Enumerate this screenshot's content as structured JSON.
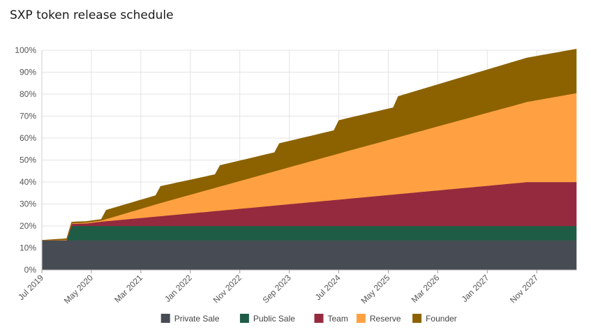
{
  "title": "SXP token release schedule",
  "colors": {
    "Private Sale": "#474c54",
    "Public Sale": "#1f5c45",
    "Team": "#952a3e",
    "Reserve": "#ffa142",
    "Founder": "#8c6200"
  },
  "chart_data": {
    "type": "area",
    "stacked": true,
    "title": "SXP token release schedule",
    "xlabel": "",
    "ylabel": "",
    "ylim": [
      0,
      100
    ],
    "y_unit": "%",
    "y_ticks": [
      "0%",
      "10%",
      "20%",
      "30%",
      "40%",
      "50%",
      "60%",
      "70%",
      "80%",
      "90%",
      "100%"
    ],
    "x_range": [
      "2019-07",
      "2028-07"
    ],
    "x_ticks": [
      "Jul 2019",
      "May 2020",
      "Mar 2021",
      "Jan 2022",
      "Nov 2022",
      "Sep 2023",
      "Jul 2024",
      "May 2025",
      "Mar 2026",
      "Jan 2027",
      "Nov 2027"
    ],
    "grid": true,
    "legend_position": "bottom",
    "series": [
      {
        "name": "Private Sale",
        "points": [
          [
            "2019-07",
            13.5
          ],
          [
            "2028-07",
            13.5
          ]
        ]
      },
      {
        "name": "Public Sale",
        "points": [
          [
            "2019-07",
            0
          ],
          [
            "2019-12",
            0
          ],
          [
            "2020-01",
            6.5
          ],
          [
            "2028-07",
            6.5
          ]
        ]
      },
      {
        "name": "Team",
        "points": [
          [
            "2019-07",
            0
          ],
          [
            "2019-12",
            0
          ],
          [
            "2020-01",
            1
          ],
          [
            "2020-04",
            1.2
          ],
          [
            "2020-07",
            2
          ],
          [
            "2027-09",
            20
          ],
          [
            "2028-07",
            20
          ]
        ]
      },
      {
        "name": "Reserve",
        "points": [
          [
            "2019-07",
            0
          ],
          [
            "2020-07",
            0.5
          ],
          [
            "2021-07",
            6
          ],
          [
            "2024-07",
            21
          ],
          [
            "2027-09",
            36.5
          ],
          [
            "2028-07",
            40.5
          ]
        ]
      },
      {
        "name": "Founder",
        "points": [
          [
            "2019-07",
            0
          ],
          [
            "2019-12",
            0.5
          ],
          [
            "2020-07",
            0.5
          ],
          [
            "2020-08",
            4
          ],
          [
            "2021-06",
            4
          ],
          [
            "2021-07",
            7.5
          ],
          [
            "2022-06",
            6
          ],
          [
            "2022-07",
            9.5
          ],
          [
            "2023-06",
            8.5
          ],
          [
            "2023-07",
            12
          ],
          [
            "2024-06",
            11
          ],
          [
            "2024-07",
            15
          ],
          [
            "2025-06",
            14
          ],
          [
            "2025-07",
            18.5
          ],
          [
            "2027-09",
            20
          ],
          [
            "2028-07",
            20
          ]
        ]
      }
    ]
  }
}
